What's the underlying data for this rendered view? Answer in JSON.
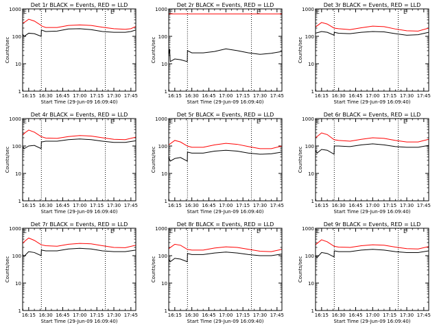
{
  "colors": {
    "background": "#ffffff",
    "axes": "#000000",
    "events": "#000000",
    "lld": "#ff0000"
  },
  "chart_data": [
    {
      "type": "line",
      "title": "Det 1r BLACK = Events, RED = LLD",
      "xlabel": "Start Time (29-Jun-09 16:09:40)",
      "ylabel": "Counts/sec",
      "xlim": [
        "16:09:40",
        "17:49:20"
      ],
      "ylim": [
        1,
        1000
      ],
      "yscale": "log",
      "x_ticks": [
        "16:15",
        "16:30",
        "16:45",
        "17:00",
        "17:15",
        "17:30",
        "17:45"
      ],
      "y_ticks": [
        "1",
        "10",
        "100",
        "1000"
      ],
      "vlines": [
        "16:26:10",
        "17:22:30"
      ],
      "marker": {
        "text": "E",
        "x": [
          "16:10:10",
          "17:27:00"
        ]
      },
      "series": [
        {
          "color": "#000000",
          "x": [
            "16:09:40",
            "16:11:00",
            "16:15:00",
            "16:20:00",
            "16:26:00",
            "16:26:10",
            "16:30:00",
            "16:40:00",
            "16:50:00",
            "17:00:00",
            "17:10:00",
            "17:20:00",
            "17:30:00",
            "17:40:00",
            "17:45:00",
            "17:49:20"
          ],
          "values": [
            120,
            100,
            130,
            125,
            100,
            170,
            150,
            155,
            185,
            190,
            175,
            150,
            140,
            140,
            150,
            170
          ]
        },
        {
          "color": "#ff0000",
          "x": [
            "16:09:40",
            "16:12:00",
            "16:15:00",
            "16:20:00",
            "16:26:00",
            "16:26:10",
            "16:30:00",
            "16:40:00",
            "16:50:00",
            "17:00:00",
            "17:10:00",
            "17:20:00",
            "17:30:00",
            "17:40:00",
            "17:45:00",
            "17:49:20"
          ],
          "values": [
            300,
            340,
            420,
            360,
            250,
            240,
            210,
            210,
            250,
            260,
            250,
            215,
            190,
            180,
            190,
            230
          ]
        }
      ]
    },
    {
      "type": "line",
      "title": "Det 2r BLACK = Events, RED = LLD",
      "xlabel": "Start Time (29-Jun-09 16:09:40)",
      "ylabel": "Counts/sec",
      "xlim": [
        "16:09:40",
        "17:49:20"
      ],
      "ylim": [
        1,
        1000
      ],
      "yscale": "log",
      "x_ticks": [
        "16:15",
        "16:30",
        "16:45",
        "17:00",
        "17:15",
        "17:30",
        "17:45"
      ],
      "y_ticks": [
        "1",
        "10",
        "100",
        "1000"
      ],
      "vlines": [
        "16:26:10",
        "17:22:30"
      ],
      "marker": {
        "text": "E",
        "x": [
          "16:10:10",
          "17:27:00"
        ]
      },
      "series": [
        {
          "color": "#000000",
          "x": [
            "16:09:40",
            "16:10:30",
            "16:11:00",
            "16:15:00",
            "16:20:00",
            "16:26:00",
            "16:26:10",
            "16:30:00",
            "16:40:00",
            "16:50:00",
            "17:00:00",
            "17:10:00",
            "17:20:00",
            "17:30:00",
            "17:40:00",
            "17:49:20"
          ],
          "values": [
            20,
            35,
            12,
            15,
            14,
            12,
            30,
            25,
            25,
            28,
            35,
            30,
            25,
            22,
            24,
            28
          ]
        },
        {
          "color": "#ff0000",
          "x": [
            "16:09:40",
            "16:30:00",
            "17:00:00",
            "17:30:00",
            "17:49:20"
          ],
          "values": [
            660,
            660,
            660,
            660,
            660
          ]
        }
      ]
    },
    {
      "type": "line",
      "title": "Det 3r BLACK = Events, RED = LLD",
      "xlabel": "Start Time (29-Jun-09 16:09:40)",
      "ylabel": "Counts/sec",
      "xlim": [
        "16:09:40",
        "17:49:20"
      ],
      "ylim": [
        1,
        1000
      ],
      "yscale": "log",
      "x_ticks": [
        "16:15",
        "16:30",
        "16:45",
        "17:00",
        "17:15",
        "17:30",
        "17:45"
      ],
      "y_ticks": [
        "1",
        "10",
        "100",
        "1000"
      ],
      "vlines": [
        "16:26:10",
        "17:22:30"
      ],
      "marker": {
        "text": "E",
        "x": [
          "16:10:10",
          "17:27:00"
        ]
      },
      "series": [
        {
          "color": "#000000",
          "x": [
            "16:09:40",
            "16:15:00",
            "16:20:00",
            "16:26:00",
            "16:26:10",
            "16:30:00",
            "16:40:00",
            "16:50:00",
            "17:00:00",
            "17:10:00",
            "17:20:00",
            "17:30:00",
            "17:40:00",
            "17:49:20"
          ],
          "values": [
            130,
            150,
            140,
            110,
            140,
            130,
            125,
            140,
            150,
            145,
            125,
            110,
            115,
            140
          ]
        },
        {
          "color": "#ff0000",
          "x": [
            "16:09:40",
            "16:15:00",
            "16:20:00",
            "16:26:00",
            "16:30:00",
            "16:40:00",
            "16:50:00",
            "17:00:00",
            "17:10:00",
            "17:20:00",
            "17:30:00",
            "17:40:00",
            "17:49:20"
          ],
          "values": [
            220,
            320,
            280,
            200,
            190,
            175,
            205,
            235,
            225,
            185,
            160,
            155,
            200
          ]
        }
      ]
    },
    {
      "type": "line",
      "title": "Det 4r BLACK = Events, RED = LLD",
      "xlabel": "Start Time (29-Jun-09 16:09:40)",
      "ylabel": "Counts/sec",
      "xlim": [
        "16:09:40",
        "17:49:20"
      ],
      "ylim": [
        1,
        1000
      ],
      "yscale": "log",
      "x_ticks": [
        "16:15",
        "16:30",
        "16:45",
        "17:00",
        "17:15",
        "17:30",
        "17:45"
      ],
      "y_ticks": [
        "1",
        "10",
        "100",
        "1000"
      ],
      "vlines": [
        "16:26:10",
        "17:22:30"
      ],
      "marker": {
        "text": "E",
        "x": [
          "16:10:10",
          "17:27:00"
        ]
      },
      "series": [
        {
          "color": "#000000",
          "x": [
            "16:09:40",
            "16:11:00",
            "16:15:00",
            "16:20:00",
            "16:26:00",
            "16:26:10",
            "16:30:00",
            "16:40:00",
            "16:50:00",
            "17:00:00",
            "17:10:00",
            "17:20:00",
            "17:30:00",
            "17:40:00",
            "17:49:20"
          ],
          "values": [
            95,
            80,
            100,
            105,
            80,
            140,
            150,
            150,
            170,
            180,
            170,
            150,
            135,
            135,
            155
          ]
        },
        {
          "color": "#ff0000",
          "x": [
            "16:09:40",
            "16:12:00",
            "16:15:00",
            "16:20:00",
            "16:26:00",
            "16:30:00",
            "16:40:00",
            "16:50:00",
            "17:00:00",
            "17:10:00",
            "17:20:00",
            "17:30:00",
            "17:40:00",
            "17:49:20"
          ],
          "values": [
            250,
            310,
            380,
            320,
            220,
            195,
            190,
            220,
            240,
            230,
            200,
            175,
            170,
            210
          ]
        }
      ]
    },
    {
      "type": "line",
      "title": "Det 5r BLACK = Events, RED = LLD",
      "xlabel": "Start Time (29-Jun-09 16:09:40)",
      "ylabel": "Counts/sec",
      "xlim": [
        "16:09:40",
        "17:49:20"
      ],
      "ylim": [
        1,
        1000
      ],
      "yscale": "log",
      "x_ticks": [
        "16:15",
        "16:30",
        "16:45",
        "17:00",
        "17:15",
        "17:30",
        "17:45"
      ],
      "y_ticks": [
        "1",
        "10",
        "100",
        "1000"
      ],
      "vlines": [
        "16:26:10",
        "17:22:30"
      ],
      "marker": {
        "text": "E",
        "x": [
          "16:10:10",
          "17:27:00"
        ]
      },
      "series": [
        {
          "color": "#000000",
          "x": [
            "16:09:40",
            "16:11:00",
            "16:15:00",
            "16:20:00",
            "16:26:00",
            "16:26:10",
            "16:30:00",
            "16:40:00",
            "16:50:00",
            "17:00:00",
            "17:10:00",
            "17:20:00",
            "17:30:00",
            "17:40:00",
            "17:49:20"
          ],
          "values": [
            40,
            28,
            35,
            38,
            28,
            60,
            55,
            55,
            65,
            70,
            65,
            55,
            50,
            52,
            60
          ]
        },
        {
          "color": "#ff0000",
          "x": [
            "16:09:40",
            "16:15:00",
            "16:20:00",
            "16:26:00",
            "16:30:00",
            "16:40:00",
            "16:50:00",
            "17:00:00",
            "17:10:00",
            "17:20:00",
            "17:30:00",
            "17:40:00",
            "17:49:20"
          ],
          "values": [
            110,
            160,
            140,
            100,
            90,
            90,
            110,
            125,
            115,
            95,
            80,
            80,
            100
          ]
        }
      ]
    },
    {
      "type": "line",
      "title": "Det 6r BLACK = Events, RED = LLD",
      "xlabel": "Start Time (29-Jun-09 16:09:40)",
      "ylabel": "Counts/sec",
      "xlim": [
        "16:09:40",
        "17:49:20"
      ],
      "ylim": [
        1,
        1000
      ],
      "yscale": "log",
      "x_ticks": [
        "16:15",
        "16:30",
        "16:45",
        "17:00",
        "17:15",
        "17:30",
        "17:45"
      ],
      "y_ticks": [
        "1",
        "10",
        "100",
        "1000"
      ],
      "vlines": [
        "16:26:10",
        "17:22:30"
      ],
      "marker": {
        "text": "E",
        "x": [
          "16:10:10",
          "17:27:00"
        ]
      },
      "series": [
        {
          "color": "#000000",
          "x": [
            "16:09:40",
            "16:11:00",
            "16:15:00",
            "16:20:00",
            "16:26:00",
            "16:26:10",
            "16:30:00",
            "16:40:00",
            "16:50:00",
            "17:00:00",
            "17:10:00",
            "17:20:00",
            "17:30:00",
            "17:40:00",
            "17:49:20"
          ],
          "values": [
            70,
            55,
            75,
            70,
            50,
            100,
            100,
            95,
            110,
            120,
            110,
            95,
            90,
            90,
            105
          ]
        },
        {
          "color": "#ff0000",
          "x": [
            "16:09:40",
            "16:15:00",
            "16:20:00",
            "16:26:00",
            "16:30:00",
            "16:40:00",
            "16:50:00",
            "17:00:00",
            "17:10:00",
            "17:20:00",
            "17:30:00",
            "17:40:00",
            "17:49:20"
          ],
          "values": [
            200,
            300,
            260,
            170,
            160,
            150,
            175,
            200,
            190,
            160,
            140,
            140,
            175
          ]
        }
      ]
    },
    {
      "type": "line",
      "title": "Det 7r BLACK = Events, RED = LLD",
      "xlabel": "Start Time (29-Jun-09 16:09:40)",
      "ylabel": "Counts/sec",
      "xlim": [
        "16:09:40",
        "17:49:20"
      ],
      "ylim": [
        1,
        1000
      ],
      "yscale": "log",
      "x_ticks": [
        "16:15",
        "16:30",
        "16:45",
        "17:00",
        "17:15",
        "17:30",
        "17:45"
      ],
      "y_ticks": [
        "1",
        "10",
        "100",
        "1000"
      ],
      "vlines": [
        "16:26:10",
        "17:22:30"
      ],
      "marker": {
        "text": "E",
        "x": [
          "16:10:10",
          "17:27:00"
        ]
      },
      "series": [
        {
          "color": "#000000",
          "x": [
            "16:09:40",
            "16:11:00",
            "16:15:00",
            "16:20:00",
            "16:26:00",
            "16:26:10",
            "16:30:00",
            "16:40:00",
            "16:50:00",
            "17:00:00",
            "17:10:00",
            "17:20:00",
            "17:30:00",
            "17:40:00",
            "17:49:20"
          ],
          "values": [
            110,
            95,
            140,
            130,
            100,
            160,
            150,
            150,
            175,
            185,
            175,
            150,
            140,
            140,
            160
          ]
        },
        {
          "color": "#ff0000",
          "x": [
            "16:09:40",
            "16:12:00",
            "16:15:00",
            "16:20:00",
            "16:26:00",
            "16:30:00",
            "16:40:00",
            "16:50:00",
            "17:00:00",
            "17:10:00",
            "17:20:00",
            "17:30:00",
            "17:40:00",
            "17:49:20"
          ],
          "values": [
            280,
            350,
            440,
            360,
            250,
            230,
            220,
            260,
            280,
            270,
            230,
            200,
            195,
            240
          ]
        }
      ]
    },
    {
      "type": "line",
      "title": "Det 8r BLACK = Events, RED = LLD",
      "xlabel": "Start Time (29-Jun-09 16:09:40)",
      "ylabel": "Counts/sec",
      "xlim": [
        "16:09:40",
        "17:49:20"
      ],
      "ylim": [
        1,
        1000
      ],
      "yscale": "log",
      "x_ticks": [
        "16:15",
        "16:30",
        "16:45",
        "17:00",
        "17:15",
        "17:30",
        "17:45"
      ],
      "y_ticks": [
        "1",
        "10",
        "100",
        "1000"
      ],
      "vlines": [
        "16:26:10",
        "17:22:30"
      ],
      "marker": {
        "text": "E",
        "x": [
          "16:10:10",
          "17:27:00"
        ]
      },
      "series": [
        {
          "color": "#000000",
          "x": [
            "16:09:40",
            "16:11:00",
            "16:15:00",
            "16:20:00",
            "16:26:00",
            "16:26:10",
            "16:30:00",
            "16:40:00",
            "16:50:00",
            "17:00:00",
            "17:10:00",
            "17:20:00",
            "17:30:00",
            "17:40:00",
            "17:49:20"
          ],
          "values": [
            75,
            60,
            80,
            75,
            60,
            120,
            110,
            110,
            125,
            135,
            125,
            110,
            100,
            100,
            115
          ]
        },
        {
          "color": "#ff0000",
          "x": [
            "16:09:40",
            "16:15:00",
            "16:20:00",
            "16:26:00",
            "16:30:00",
            "16:40:00",
            "16:50:00",
            "17:00:00",
            "17:10:00",
            "17:20:00",
            "17:30:00",
            "17:40:00",
            "17:49:20"
          ],
          "values": [
            180,
            260,
            240,
            170,
            160,
            160,
            190,
            210,
            200,
            170,
            145,
            140,
            170
          ]
        }
      ]
    },
    {
      "type": "line",
      "title": "Det 9r BLACK = Events, RED = LLD",
      "xlabel": "Start Time (29-Jun-09 16:09:40)",
      "ylabel": "Counts/sec",
      "xlim": [
        "16:09:40",
        "17:49:20"
      ],
      "ylim": [
        1,
        1000
      ],
      "yscale": "log",
      "x_ticks": [
        "16:15",
        "16:30",
        "16:45",
        "17:00",
        "17:15",
        "17:30",
        "17:45"
      ],
      "y_ticks": [
        "1",
        "10",
        "100",
        "1000"
      ],
      "vlines": [
        "16:26:10",
        "17:22:30"
      ],
      "marker": {
        "text": "E",
        "x": [
          "16:10:10",
          "17:27:00"
        ]
      },
      "series": [
        {
          "color": "#000000",
          "x": [
            "16:09:40",
            "16:11:00",
            "16:15:00",
            "16:20:00",
            "16:26:00",
            "16:26:10",
            "16:30:00",
            "16:40:00",
            "16:50:00",
            "17:00:00",
            "17:10:00",
            "17:20:00",
            "17:30:00",
            "17:40:00",
            "17:49:20"
          ],
          "values": [
            100,
            85,
            130,
            120,
            90,
            150,
            140,
            140,
            160,
            170,
            160,
            140,
            130,
            130,
            150
          ]
        },
        {
          "color": "#ff0000",
          "x": [
            "16:09:40",
            "16:12:00",
            "16:15:00",
            "16:20:00",
            "16:26:00",
            "16:30:00",
            "16:40:00",
            "16:50:00",
            "17:00:00",
            "17:10:00",
            "17:20:00",
            "17:30:00",
            "17:40:00",
            "17:49:20"
          ],
          "values": [
            250,
            300,
            380,
            320,
            220,
            205,
            200,
            230,
            250,
            240,
            205,
            180,
            175,
            215
          ]
        }
      ]
    }
  ]
}
